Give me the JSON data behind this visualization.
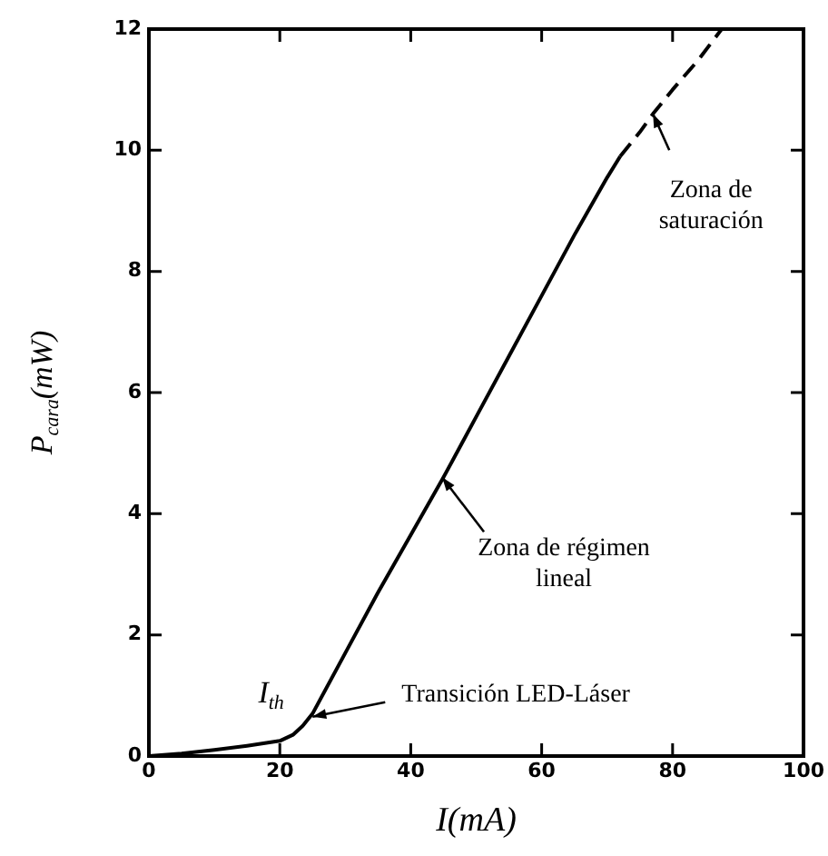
{
  "chart_data": {
    "type": "line",
    "xlabel": "I(mA)",
    "ylabel": "P$_{cara}$(mW)",
    "xlim": [
      0,
      100
    ],
    "xticks": [
      0,
      20,
      40,
      60,
      80,
      100
    ],
    "ylim": [
      0,
      12
    ],
    "yticks": [
      0,
      2,
      4,
      6,
      8,
      10,
      12
    ],
    "grid": false,
    "legend": false,
    "marker": "none",
    "series": [
      {
        "color": "#000000",
        "line_style": "solid",
        "x": [
          0,
          5,
          10,
          15,
          20,
          22,
          23.5,
          25,
          30,
          35,
          40,
          45,
          50,
          55,
          60,
          65,
          70,
          72
        ],
        "values": [
          0,
          0.04,
          0.1,
          0.17,
          0.25,
          0.35,
          0.5,
          0.7,
          1.7,
          2.7,
          3.65,
          4.6,
          5.6,
          6.6,
          7.6,
          8.6,
          9.55,
          9.9
        ]
      },
      {
        "color": "#000000",
        "line_style": "dashed",
        "x": [
          72,
          75,
          77,
          80,
          84,
          87.5
        ],
        "values": [
          9.9,
          10.3,
          10.6,
          11,
          11.5,
          12
        ]
      }
    ],
    "annotations": [
      {
        "text": "I$_{th}$",
        "x": 24.5,
        "y": 0.6
      },
      {
        "text": "Transición LED-Láser",
        "x": 25,
        "y": 0.65
      },
      {
        "text": "Zona de régimen\nlineal",
        "x": 44.8,
        "y": 4.6
      },
      {
        "text": "Zona de\nsaturación",
        "x": 77,
        "y": 10.6
      }
    ]
  }
}
